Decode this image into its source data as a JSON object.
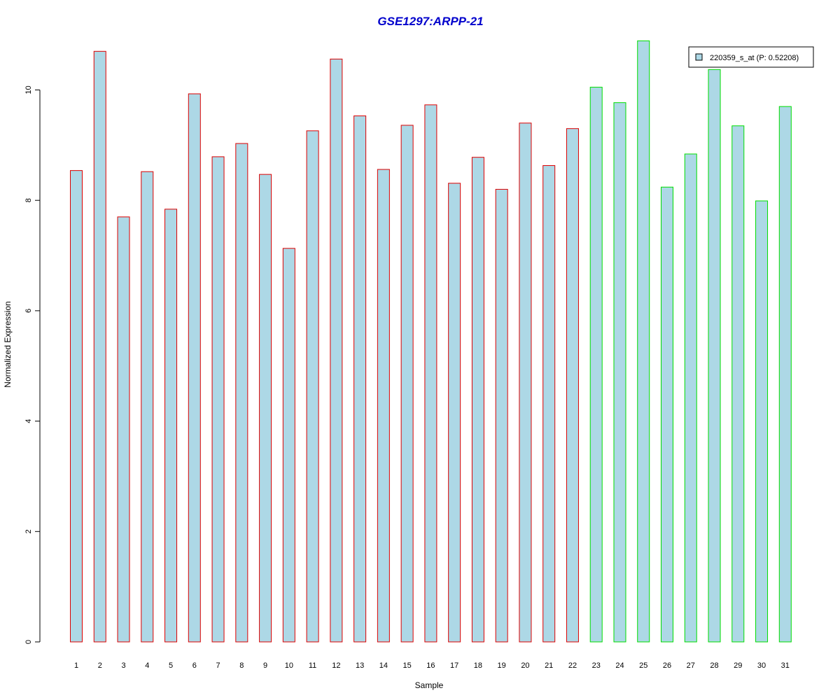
{
  "chart_data": {
    "type": "bar",
    "title": "GSE1297:ARPP-21",
    "xlabel": "Sample",
    "ylabel": "Normalized Expression",
    "ylim": [
      0,
      11
    ],
    "yticks": [
      0,
      2,
      4,
      6,
      8,
      10
    ],
    "categories": [
      "1",
      "2",
      "3",
      "4",
      "5",
      "6",
      "7",
      "8",
      "9",
      "10",
      "11",
      "12",
      "13",
      "14",
      "15",
      "16",
      "17",
      "18",
      "19",
      "20",
      "21",
      "22",
      "23",
      "24",
      "25",
      "26",
      "27",
      "28",
      "29",
      "30",
      "31"
    ],
    "series": [
      {
        "name": "220359_s_at (P: 0.52208)",
        "values": [
          8.54,
          10.7,
          7.7,
          8.52,
          7.84,
          9.93,
          8.79,
          9.03,
          8.47,
          7.13,
          9.26,
          10.56,
          9.53,
          8.56,
          9.36,
          9.73,
          8.31,
          8.78,
          8.2,
          9.4,
          8.63,
          9.3,
          10.05,
          9.77,
          10.89,
          8.24,
          8.84,
          10.37,
          9.35,
          7.99,
          9.7
        ]
      }
    ],
    "groups": [
      {
        "indices": [
          0,
          21
        ],
        "color": "#dd0000"
      },
      {
        "indices": [
          22,
          30
        ],
        "color": "#00dd00"
      }
    ],
    "colors": {
      "bar_fill": "#add8e6",
      "title": "#0000cc",
      "axis": "#000000"
    },
    "legend": {
      "position": "top-right",
      "entry": "220359_s_at (P: 0.52208)"
    },
    "grid": false
  }
}
